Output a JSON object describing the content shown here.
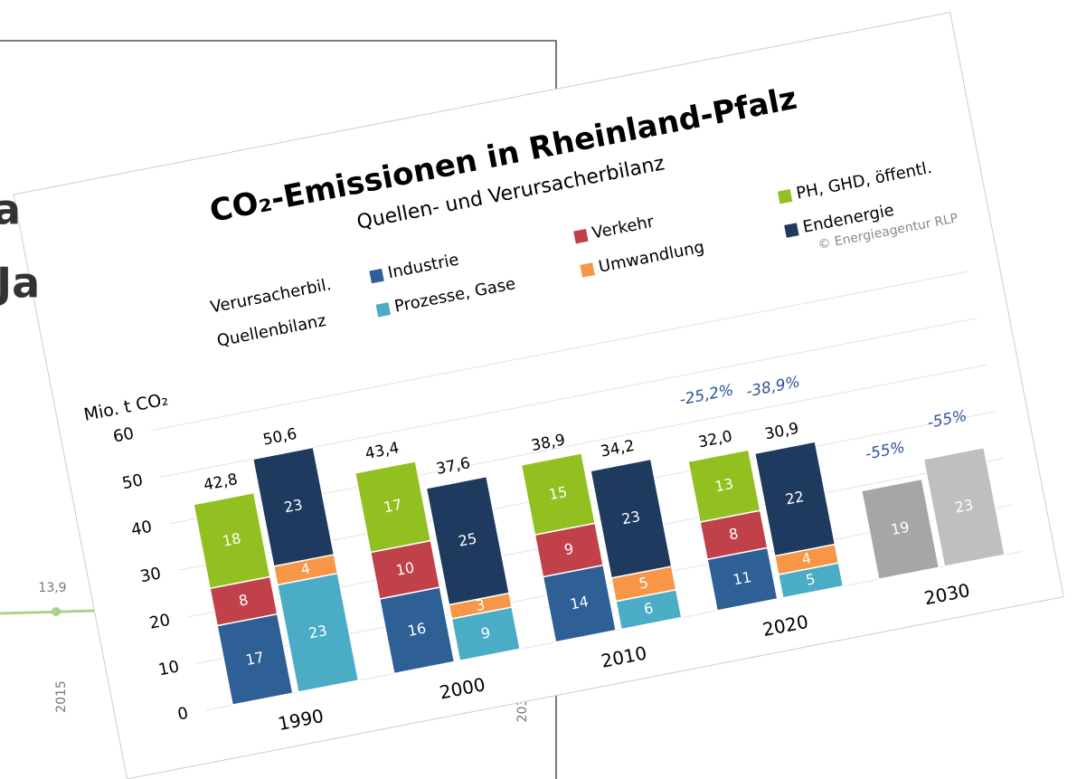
{
  "background": {
    "title_fragments": [
      "a",
      "Ja"
    ],
    "point_label": "13,9",
    "x_labels": [
      "2015",
      "203"
    ]
  },
  "chart_data": {
    "type": "bar",
    "title": "CO₂-Emissionen in Rheinland-Pfalz",
    "subtitle": "Quellen- und Verursacherbilanz",
    "credit": "© Energieagentur RLP",
    "y_label": "Mio. t CO₂",
    "group_labels": [
      "Verursacherbil.",
      "Quellenbilanz"
    ],
    "categories": [
      "1990",
      "2000",
      "2010",
      "2020",
      "2030"
    ],
    "series": [
      {
        "name": "Industrie",
        "color": "#2e5f95",
        "group": 0,
        "values": [
          17,
          16,
          14,
          11,
          null
        ]
      },
      {
        "name": "Verkehr",
        "color": "#c0414a",
        "group": 0,
        "values": [
          8,
          10,
          9,
          8,
          null
        ]
      },
      {
        "name": "PH, GHD, öffentl.",
        "color": "#92c020",
        "group": 0,
        "values": [
          18,
          17,
          15,
          13,
          null
        ]
      },
      {
        "name": "Prozesse, Gase",
        "color": "#4bacc6",
        "group": 1,
        "values": [
          23,
          9,
          6,
          5,
          null
        ]
      },
      {
        "name": "Umwandlung",
        "color": "#f79646",
        "group": 1,
        "values": [
          4,
          3,
          5,
          4,
          null
        ]
      },
      {
        "name": "Endenergie",
        "color": "#1f3a5f",
        "group": 1,
        "values": [
          23,
          25,
          23,
          22,
          null
        ]
      },
      {
        "color": "#a6a6a6",
        "group": 0,
        "values": [
          null,
          null,
          null,
          null,
          19
        ]
      },
      {
        "color": "#bfbfbf",
        "group": 1,
        "values": [
          null,
          null,
          null,
          null,
          23
        ]
      }
    ],
    "totals": [
      {
        "values": [
          42.8,
          43.4,
          38.9,
          32.0,
          null
        ],
        "value_labels": [
          "42,8",
          "43,4",
          "38,9",
          "32,0",
          null
        ]
      },
      {
        "values": [
          50.6,
          37.6,
          34.2,
          30.9,
          null
        ],
        "value_labels": [
          "50,6",
          "37,6",
          "34,2",
          "30,9",
          null
        ]
      }
    ],
    "change_labels": [
      [
        null,
        null,
        null,
        "-25,2%",
        "-55%"
      ],
      [
        null,
        null,
        null,
        "-38,9%",
        "-55%"
      ]
    ],
    "ylim": [
      0,
      60
    ],
    "yticks": [
      0,
      10,
      20,
      30,
      40,
      50,
      60
    ],
    "grid": true
  }
}
